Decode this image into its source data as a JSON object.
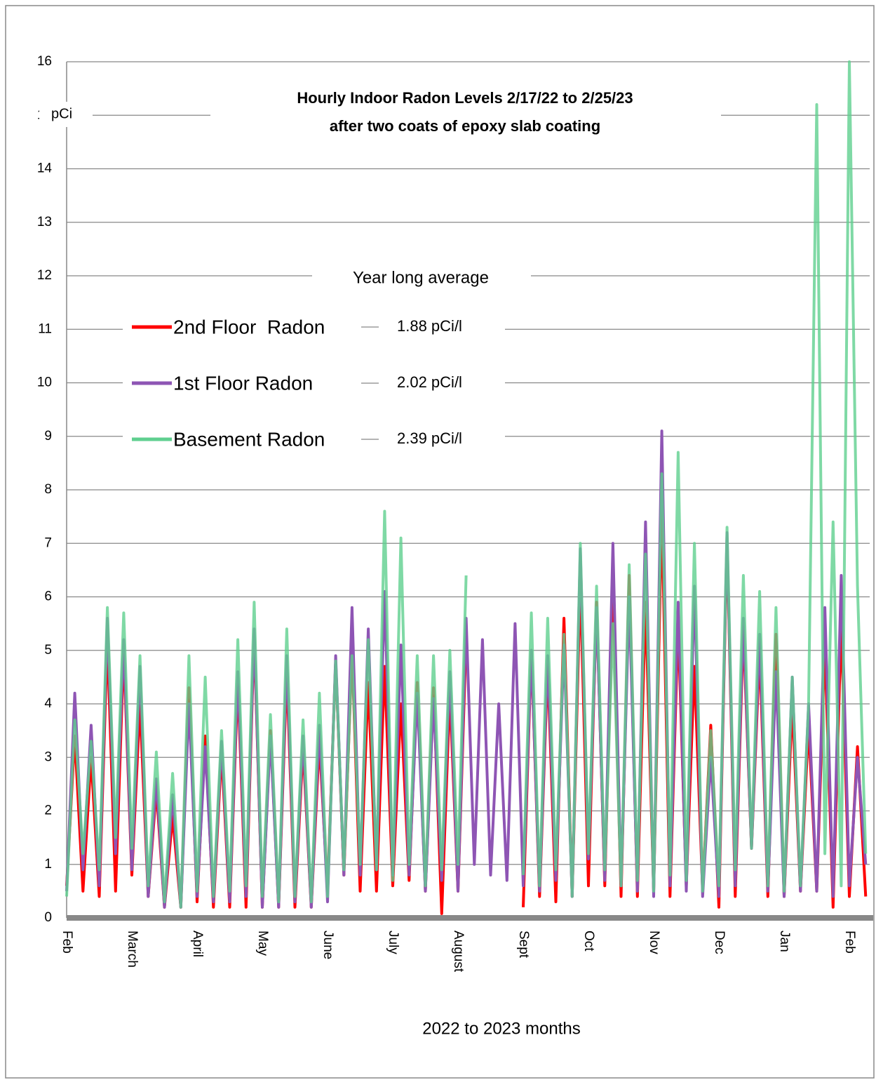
{
  "chart_data": {
    "type": "line",
    "title": "Hourly Indoor Radon Levels 2/17/22 to 2/25/23",
    "subtitle": "after two coats of epoxy slab coating",
    "y_label": "pCi",
    "x_label": "2022 to 2023 months",
    "legend_title": "Year long average",
    "legend_values": [
      "1.88 pCi/l",
      "2.02 pCi/l",
      "2.39 pCi/l"
    ],
    "grid": true,
    "ylim": [
      0,
      16
    ],
    "yticks": [
      0,
      1,
      2,
      3,
      4,
      5,
      6,
      7,
      8,
      9,
      10,
      11,
      12,
      13,
      14,
      15,
      16
    ],
    "categories": [
      "Feb",
      null,
      null,
      null,
      null,
      null,
      null,
      null,
      "March",
      null,
      null,
      null,
      null,
      null,
      null,
      null,
      "April",
      null,
      null,
      null,
      null,
      null,
      null,
      null,
      "May",
      null,
      null,
      null,
      null,
      null,
      null,
      null,
      "June",
      null,
      null,
      null,
      null,
      null,
      null,
      null,
      "July",
      null,
      null,
      null,
      null,
      null,
      null,
      null,
      "August",
      null,
      null,
      null,
      null,
      null,
      null,
      null,
      "Sept",
      null,
      null,
      null,
      null,
      null,
      null,
      null,
      "Oct",
      null,
      null,
      null,
      null,
      null,
      null,
      null,
      "Nov",
      null,
      null,
      null,
      null,
      null,
      null,
      null,
      "Dec",
      null,
      null,
      null,
      null,
      null,
      null,
      null,
      "Jan",
      null,
      null,
      null,
      null,
      null,
      null,
      null,
      "Feb",
      null,
      null
    ],
    "series": [
      {
        "name": "2nd Floor  Radon",
        "color": "#ff0000",
        "values": [
          0.6,
          3.4,
          0.5,
          3.0,
          0.4,
          5.2,
          0.5,
          5.0,
          0.8,
          4.0,
          0.4,
          2.4,
          0.2,
          1.9,
          0.2,
          4.3,
          0.3,
          3.4,
          0.2,
          3.1,
          0.2,
          4.4,
          0.2,
          5.3,
          0.2,
          3.5,
          0.2,
          4.6,
          0.2,
          3.2,
          0.2,
          3.3,
          0.5,
          4.8,
          0.8,
          5.0,
          0.5,
          4.4,
          0.5,
          4.7,
          0.6,
          4.0,
          0.7,
          4.4,
          0.5,
          4.3,
          0.08,
          4.2,
          0.5,
          5.2,
          null,
          null,
          null,
          null,
          null,
          null,
          0.2,
          5.0,
          0.4,
          4.7,
          0.3,
          5.6,
          0.4,
          6.3,
          0.6,
          5.9,
          0.6,
          6.4,
          0.4,
          6.4,
          0.4,
          5.9,
          0.5,
          7.6,
          0.4,
          5.5,
          0.6,
          4.7,
          0.5,
          3.6,
          0.2,
          7.1,
          0.4,
          5.4,
          1.3,
          5.0,
          0.4,
          5.3,
          0.4,
          4.0,
          0.5,
          3.6,
          0.5,
          5.1,
          0.2,
          5.5,
          0.4,
          3.2,
          0.4
        ]
      },
      {
        "name": "1st Floor Radon",
        "color": "#8e55b4",
        "values": [
          0.5,
          4.2,
          0.9,
          3.6,
          0.6,
          5.6,
          1.2,
          5.2,
          0.9,
          4.7,
          0.4,
          2.6,
          0.2,
          2.3,
          0.2,
          4.0,
          0.4,
          3.2,
          0.3,
          3.3,
          0.3,
          4.6,
          0.4,
          5.4,
          0.2,
          3.4,
          0.2,
          4.9,
          0.3,
          3.4,
          0.2,
          3.6,
          0.3,
          4.9,
          0.8,
          5.8,
          0.8,
          5.4,
          0.9,
          6.1,
          0.8,
          5.1,
          0.8,
          4.2,
          0.5,
          4.1,
          0.7,
          4.6,
          0.5,
          5.6,
          1.0,
          5.2,
          0.8,
          4.0,
          0.7,
          5.5,
          0.6,
          5.0,
          0.5,
          4.9,
          0.7,
          5.1,
          0.4,
          6.9,
          1.1,
          5.8,
          0.7,
          7.0,
          0.6,
          6.0,
          0.5,
          7.4,
          0.4,
          9.1,
          0.6,
          5.9,
          0.5,
          6.2,
          0.4,
          3.0,
          0.4,
          7.2,
          0.6,
          5.6,
          1.3,
          5.3,
          0.5,
          4.6,
          0.4,
          4.5,
          0.5,
          4.0,
          0.5,
          5.8,
          0.4,
          6.4,
          0.6,
          3.0,
          1.0
        ]
      },
      {
        "name": "Basement Radon",
        "color": "#5fcf8f",
        "values": [
          0.4,
          3.7,
          1.2,
          3.3,
          0.9,
          5.8,
          1.5,
          5.7,
          1.3,
          4.9,
          0.6,
          3.1,
          0.3,
          2.7,
          0.2,
          4.9,
          0.5,
          4.5,
          0.4,
          3.5,
          0.5,
          5.2,
          0.6,
          5.9,
          0.4,
          3.8,
          0.3,
          5.4,
          0.4,
          3.7,
          0.3,
          4.2,
          0.4,
          4.8,
          0.9,
          4.9,
          1.0,
          5.2,
          0.9,
          7.6,
          0.7,
          7.1,
          1.0,
          4.9,
          0.6,
          4.9,
          0.9,
          5.0,
          1.0,
          6.4,
          null,
          null,
          null,
          null,
          null,
          null,
          0.8,
          5.7,
          0.6,
          5.6,
          0.9,
          5.3,
          0.4,
          7.0,
          1.2,
          6.2,
          0.9,
          5.5,
          0.6,
          6.6,
          0.7,
          6.8,
          0.5,
          8.3,
          0.8,
          8.7,
          0.7,
          7.0,
          0.5,
          3.5,
          0.6,
          7.3,
          0.9,
          6.4,
          1.3,
          6.1,
          0.6,
          5.8,
          0.5,
          4.5,
          0.6,
          4.0,
          15.2,
          1.2,
          7.4,
          0.6,
          16.0,
          6.2,
          1.2
        ]
      }
    ]
  }
}
